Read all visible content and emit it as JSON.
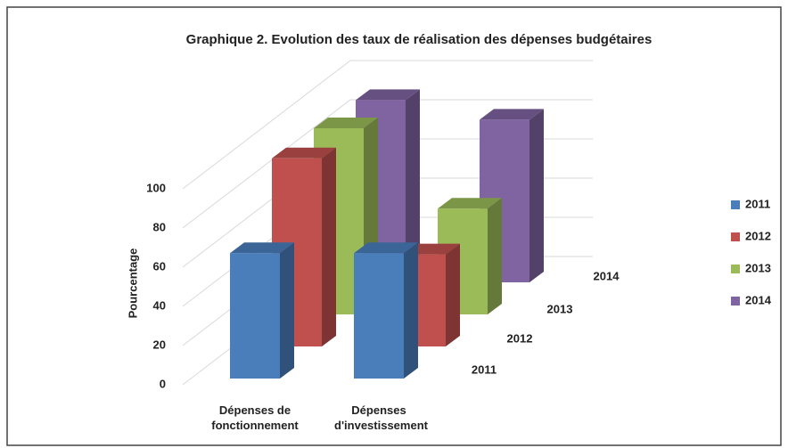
{
  "chart_data": {
    "type": "bar3d",
    "title": "Graphique 2. Evolution des taux de réalisation des dépenses budgétaires",
    "y_label": "Pourcentage",
    "categories": [
      "Dépenses de fonctionnement",
      "Dépenses d'investissement"
    ],
    "series": [
      {
        "name": "2011",
        "color": "#4a7ebb",
        "values": [
          64,
          64
        ]
      },
      {
        "name": "2012",
        "color": "#c0504d",
        "values": [
          96,
          47
        ]
      },
      {
        "name": "2013",
        "color": "#9bbb59",
        "values": [
          95,
          54
        ]
      },
      {
        "name": "2014",
        "color": "#8064a2",
        "values": [
          93,
          83
        ]
      }
    ],
    "ylim": [
      0,
      100
    ],
    "yticks": [
      0,
      20,
      40,
      60,
      80,
      100
    ],
    "grid": true,
    "legend": "right"
  }
}
